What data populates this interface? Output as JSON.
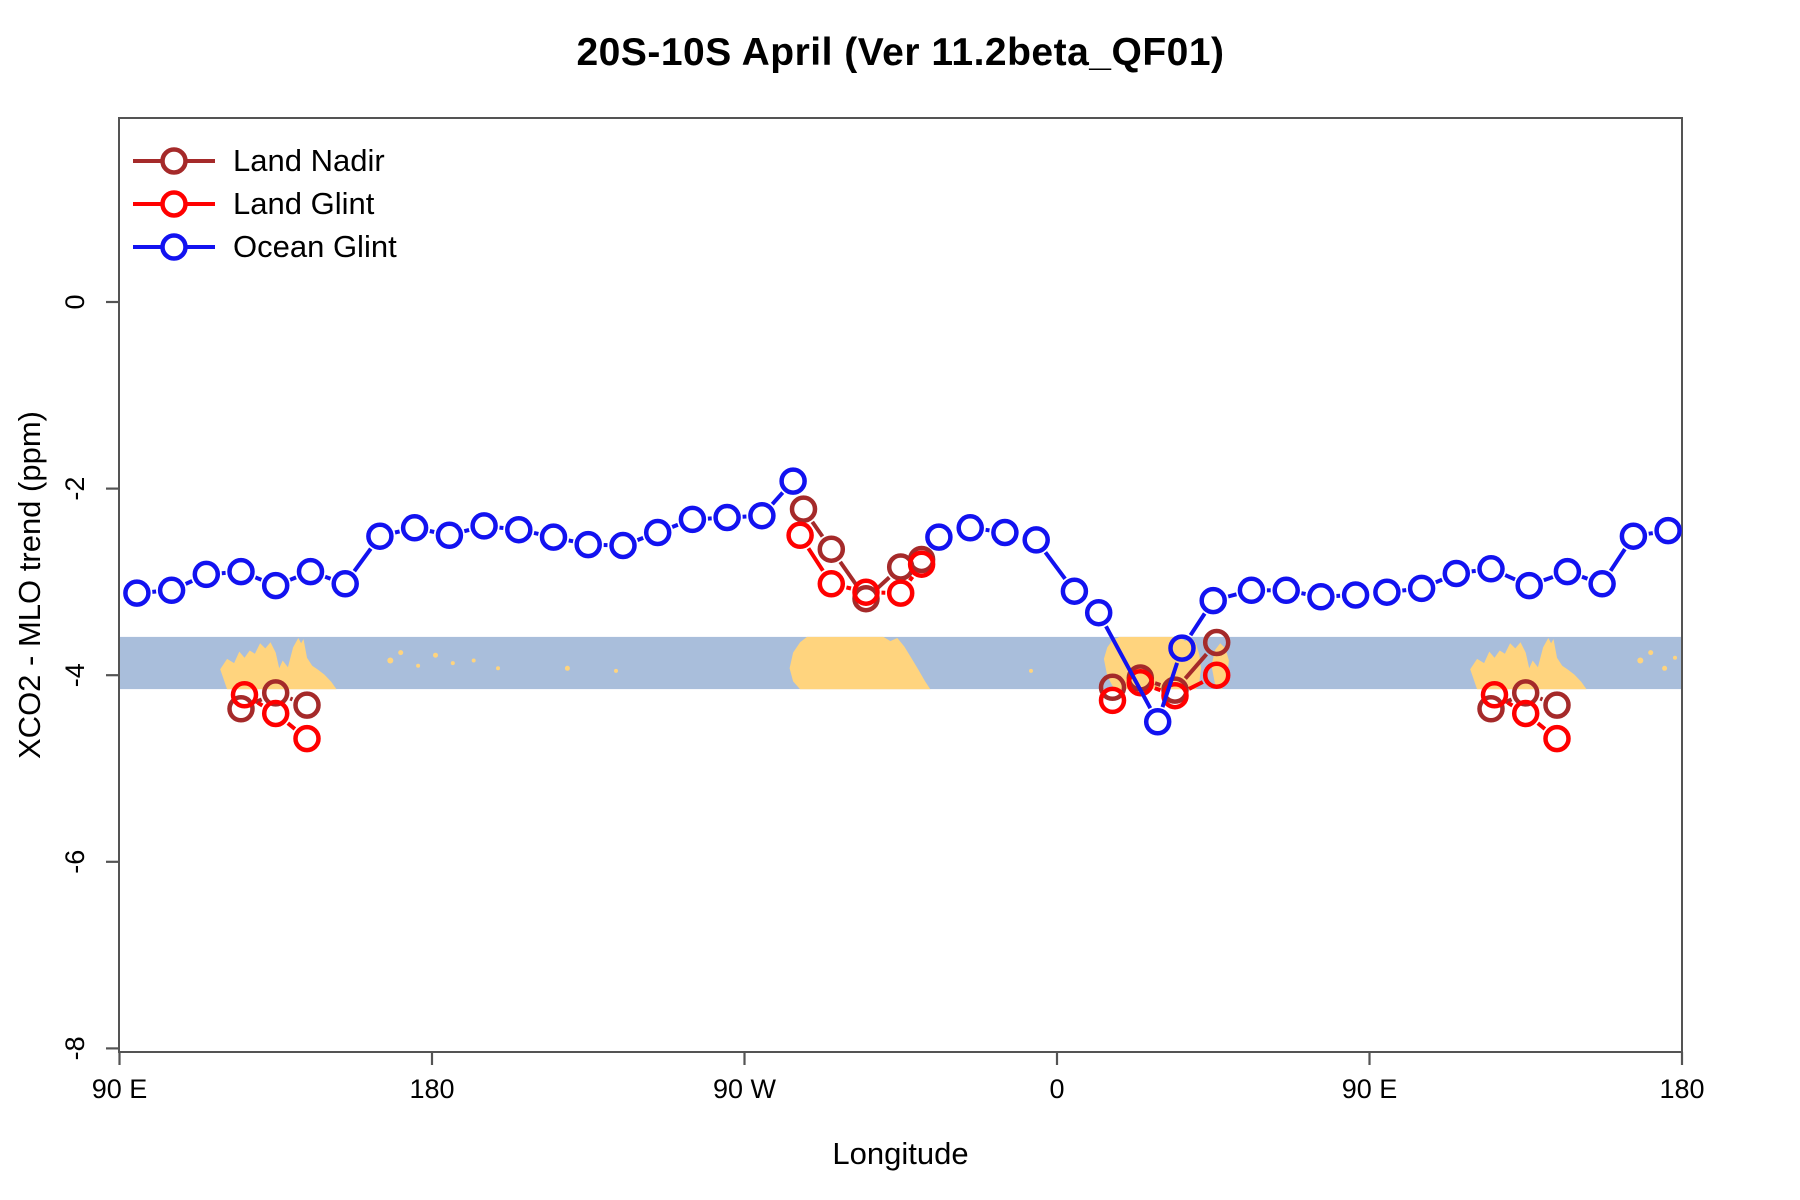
{
  "title": "20S-10S April (Ver 11.2beta_QF01)",
  "axes": {
    "x_label": "Longitude",
    "y_label": "XCO2 - MLO trend (ppm)",
    "x_ticks": [
      {
        "lon": 90,
        "label": "90 E"
      },
      {
        "lon": 180,
        "label": "180"
      },
      {
        "lon": 270,
        "label": "90 W"
      },
      {
        "lon": 360,
        "label": "0"
      },
      {
        "lon": 450,
        "label": "90 E"
      },
      {
        "lon": 540,
        "label": "180"
      }
    ],
    "y_ticks": [
      {
        "v": 0,
        "label": "0"
      },
      {
        "v": -2,
        "label": "-2"
      },
      {
        "v": -4,
        "label": "-4"
      },
      {
        "v": -6,
        "label": "-6"
      },
      {
        "v": -8,
        "label": "-8"
      }
    ],
    "x_range_axis_deg": [
      90,
      540
    ],
    "y_range_ppm": [
      -8.05,
      1.97
    ],
    "axis_note": "longitude axis wraps eastward: 90E-180-90W-0-90E-180"
  },
  "legend": [
    {
      "label": "Land Nadir",
      "series": "land_nadir"
    },
    {
      "label": "Land Glint",
      "series": "land_glint"
    },
    {
      "label": "Ocean Glint",
      "series": "ocean_glint"
    }
  ],
  "colors": {
    "land_nadir": "#A52A2A",
    "land_glint": "#FF0000",
    "ocean_glint": "#1212F0",
    "map_band": "#A9BEDB",
    "map_land": "#FFD47E",
    "axis_line": "#545454",
    "text": "#000000"
  },
  "map_band": {
    "top_ppm": -3.59,
    "bottom_ppm": -4.15,
    "description": "world map strip of 20S-10S latitude band drawn across plot"
  },
  "chart_data": {
    "type": "line",
    "marker": "open-circle",
    "line_style": "segments-with-gaps-at-markers",
    "title": "20S-10S April (Ver 11.2beta_QF01)",
    "xlabel": "Longitude",
    "ylabel": "XCO2 - MLO trend (ppm)",
    "x_units": "axis degrees (90 = 90E, 270 = 90W, 360 = 0, 540 = 180)",
    "series": [
      {
        "name": "Land Nadir",
        "key": "land_nadir",
        "segments": [
          [
            [
              125,
              -4.36
            ],
            [
              135,
              -4.19
            ],
            [
              144,
              -4.32
            ]
          ],
          [
            [
              287,
              -2.22
            ],
            [
              295,
              -2.65
            ],
            [
              305,
              -3.18
            ],
            [
              315,
              -2.84
            ],
            [
              321,
              -2.76
            ]
          ],
          [
            [
              376,
              -4.13
            ],
            [
              384,
              -4.03
            ],
            [
              394,
              -4.16
            ],
            [
              406,
              -3.65
            ]
          ],
          [
            [
              485,
              -4.36
            ],
            [
              495,
              -4.19
            ],
            [
              504,
              -4.32
            ]
          ]
        ]
      },
      {
        "name": "Land Glint",
        "key": "land_glint",
        "segments": [
          [
            [
              126,
              -4.21
            ],
            [
              135,
              -4.41
            ],
            [
              144,
              -4.68
            ]
          ],
          [
            [
              286,
              -2.5
            ],
            [
              295,
              -3.02
            ],
            [
              305,
              -3.11
            ],
            [
              315,
              -3.12
            ],
            [
              321,
              -2.81
            ]
          ],
          [
            [
              376,
              -4.27
            ],
            [
              384,
              -4.08
            ],
            [
              394,
              -4.22
            ],
            [
              406,
              -4.0
            ]
          ],
          [
            [
              486,
              -4.21
            ],
            [
              495,
              -4.41
            ],
            [
              504,
              -4.68
            ]
          ]
        ]
      },
      {
        "name": "Ocean Glint",
        "key": "ocean_glint",
        "segments": [
          [
            [
              95,
              -3.12
            ],
            [
              105,
              -3.09
            ],
            [
              115,
              -2.92
            ],
            [
              125,
              -2.89
            ],
            [
              135,
              -3.04
            ],
            [
              145,
              -2.89
            ],
            [
              155,
              -3.02
            ],
            [
              165,
              -2.51
            ],
            [
              175,
              -2.42
            ],
            [
              185,
              -2.5
            ],
            [
              195,
              -2.4
            ],
            [
              205,
              -2.44
            ],
            [
              215,
              -2.52
            ],
            [
              225,
              -2.6
            ],
            [
              235,
              -2.61
            ],
            [
              245,
              -2.47
            ],
            [
              255,
              -2.33
            ],
            [
              265,
              -2.31
            ],
            [
              275,
              -2.29
            ],
            [
              284,
              -1.92
            ]
          ],
          [
            [
              326,
              -2.52
            ],
            [
              335,
              -2.42
            ],
            [
              345,
              -2.47
            ],
            [
              354,
              -2.55
            ],
            [
              365,
              -3.1
            ],
            [
              372,
              -3.33
            ],
            [
              389,
              -4.5
            ],
            [
              396,
              -3.71
            ],
            [
              405,
              -3.2
            ],
            [
              416,
              -3.09
            ],
            [
              426,
              -3.09
            ],
            [
              436,
              -3.16
            ],
            [
              446,
              -3.14
            ],
            [
              455,
              -3.11
            ],
            [
              465,
              -3.07
            ],
            [
              475,
              -2.91
            ],
            [
              485,
              -2.86
            ],
            [
              496,
              -3.04
            ],
            [
              507,
              -2.89
            ],
            [
              517,
              -3.02
            ],
            [
              526,
              -2.51
            ],
            [
              536,
              -2.45
            ]
          ]
        ]
      }
    ],
    "land_shapes": [
      {
        "name": "australia",
        "offsets": [
          0,
          360
        ],
        "pts": [
          [
            119,
            0.62
          ],
          [
            121,
            0.42
          ],
          [
            123,
            0.5
          ],
          [
            124.5,
            0.28
          ],
          [
            126,
            0.4
          ],
          [
            127.5,
            0.26
          ],
          [
            129,
            0.32
          ],
          [
            130.5,
            0.12
          ],
          [
            132,
            0.22
          ],
          [
            133.5,
            0.1
          ],
          [
            135,
            0.3
          ],
          [
            136,
            0.6
          ],
          [
            137,
            0.45
          ],
          [
            138.5,
            0.58
          ],
          [
            140,
            0.2
          ],
          [
            141.5,
            0.02
          ],
          [
            142.3,
            0.12
          ],
          [
            143,
            0.04
          ],
          [
            144,
            0.4
          ],
          [
            145.5,
            0.55
          ],
          [
            147,
            0.62
          ],
          [
            149,
            0.72
          ],
          [
            151,
            0.86
          ],
          [
            152.5,
            1.0
          ],
          [
            121,
            1.0
          ]
        ]
      },
      {
        "name": "south-america",
        "offsets": [
          0
        ],
        "pts": [
          [
            283,
            0.6
          ],
          [
            284,
            0.3
          ],
          [
            286,
            0.1
          ],
          [
            288,
            0.0
          ],
          [
            310,
            0.0
          ],
          [
            312,
            0.08
          ],
          [
            314,
            0.02
          ],
          [
            316,
            0.18
          ],
          [
            318,
            0.4
          ],
          [
            320,
            0.62
          ],
          [
            322,
            0.85
          ],
          [
            323.5,
            1.0
          ],
          [
            286,
            1.0
          ],
          [
            284,
            0.85
          ]
        ]
      },
      {
        "name": "africa",
        "offsets": [
          0
        ],
        "pts": [
          [
            373.5,
            0.42
          ],
          [
            374.5,
            0.2
          ],
          [
            376,
            0.06
          ],
          [
            378,
            0.0
          ],
          [
            395,
            0.0
          ],
          [
            397,
            0.08
          ],
          [
            398.5,
            0.0
          ],
          [
            400,
            0.12
          ],
          [
            401,
            0.35
          ],
          [
            401.5,
            0.6
          ],
          [
            401,
            0.85
          ],
          [
            400,
            1.0
          ],
          [
            376.5,
            1.0
          ],
          [
            374.5,
            0.75
          ]
        ]
      },
      {
        "name": "madagascar",
        "offsets": [
          0
        ],
        "pts": [
          [
            404.5,
            0.55
          ],
          [
            405.5,
            0.25
          ],
          [
            407,
            0.12
          ],
          [
            408.5,
            0.22
          ],
          [
            409.5,
            0.45
          ],
          [
            409,
            0.75
          ],
          [
            407.5,
            1.0
          ],
          [
            405.5,
            0.9
          ]
        ]
      }
    ],
    "island_specks": [
      {
        "lon": 168,
        "t": 0.45,
        "r": 3
      },
      {
        "lon": 171,
        "t": 0.3,
        "r": 2.5
      },
      {
        "lon": 176,
        "t": 0.55,
        "r": 2
      },
      {
        "lon": 181,
        "t": 0.35,
        "r": 2.5
      },
      {
        "lon": 186,
        "t": 0.5,
        "r": 2
      },
      {
        "lon": 192,
        "t": 0.45,
        "r": 2
      },
      {
        "lon": 199,
        "t": 0.6,
        "r": 2
      },
      {
        "lon": 219,
        "t": 0.6,
        "r": 2.5
      },
      {
        "lon": 233,
        "t": 0.65,
        "r": 2
      },
      {
        "lon": 352.5,
        "t": 0.65,
        "r": 2
      },
      {
        "lon": 528,
        "t": 0.45,
        "r": 3
      },
      {
        "lon": 531,
        "t": 0.3,
        "r": 2.5
      },
      {
        "lon": 535,
        "t": 0.6,
        "r": 2.5
      },
      {
        "lon": 538,
        "t": 0.4,
        "r": 2
      }
    ]
  }
}
